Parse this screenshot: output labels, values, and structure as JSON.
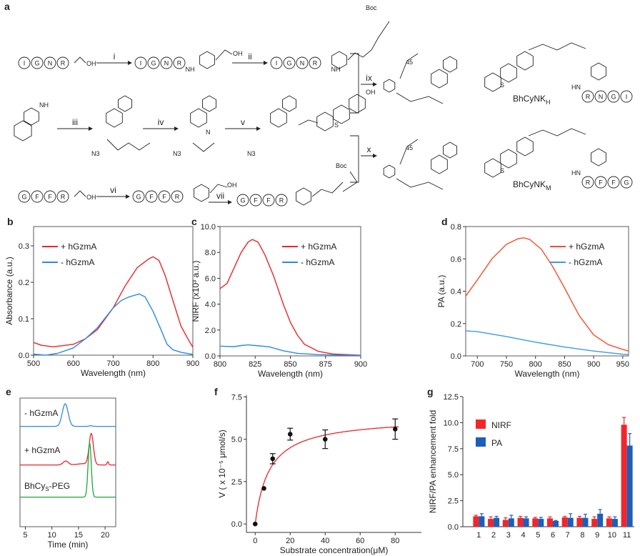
{
  "panel_labels": [
    "a",
    "b",
    "c",
    "d",
    "e",
    "f",
    "g"
  ],
  "scheme": {
    "steps": [
      "i",
      "ii",
      "iii",
      "iv",
      "v",
      "vi",
      "vii",
      "ix",
      "x"
    ],
    "peptide_top": [
      "I",
      "G",
      "N",
      "R"
    ],
    "peptide_bottom": [
      "G",
      "F",
      "F",
      "R"
    ],
    "product_top_peptide": [
      "R",
      "N",
      "G",
      "I"
    ],
    "product_bottom_peptide": [
      "R",
      "F",
      "F",
      "G"
    ],
    "atoms": {
      "oh": "OH",
      "boc": "Boc",
      "n3": "N3",
      "nh": "NH",
      "hn": "HN",
      "s": "S",
      "peg_n": "45",
      "o": "O",
      "n": "N"
    },
    "product_top": {
      "name": "BhCyNK",
      "sub": "H"
    },
    "product_bottom": {
      "name": "BhCyNK",
      "sub": "M"
    }
  },
  "chart_data": [
    {
      "id": "b",
      "type": "line",
      "xlabel": "Wavelength (nm)",
      "ylabel": "Absorbance (a.u.)",
      "xlim": [
        500,
        900
      ],
      "ylim": [
        0,
        0.353
      ],
      "xticks": [
        500,
        600,
        700,
        800,
        900
      ],
      "xticklabels": [
        "500",
        "600",
        "700",
        "800",
        "900"
      ],
      "yticks": [
        0,
        0.1,
        0.2,
        0.3
      ],
      "yticklabels": [
        "0.0",
        "0.1",
        "0.2",
        "0.3"
      ],
      "legend": "top-left",
      "series": [
        {
          "name": "+ hGzmA",
          "color": "#e8262a",
          "x": [
            500,
            520,
            550,
            600,
            630,
            660,
            700,
            730,
            760,
            790,
            800,
            815,
            830,
            850,
            870,
            890,
            900
          ],
          "y": [
            0.035,
            0.027,
            0.023,
            0.03,
            0.045,
            0.07,
            0.13,
            0.19,
            0.24,
            0.265,
            0.27,
            0.26,
            0.22,
            0.15,
            0.08,
            0.04,
            0.022
          ]
        },
        {
          "name": "- hGzmA",
          "color": "#2b8ae8",
          "x": [
            500,
            530,
            560,
            600,
            630,
            660,
            700,
            720,
            740,
            765,
            780,
            800,
            820,
            835,
            850,
            870,
            900
          ],
          "y": [
            0.003,
            0,
            0.005,
            0.02,
            0.045,
            0.075,
            0.13,
            0.15,
            0.16,
            0.168,
            0.16,
            0.12,
            0.07,
            0.03,
            0.015,
            0.008,
            0.002
          ]
        }
      ]
    },
    {
      "id": "c",
      "type": "line",
      "xlabel": "Wavelength (nm)",
      "ylabel": "NIRF (x10³ a.u.)",
      "xlim": [
        800,
        900
      ],
      "ylim": [
        0,
        10
      ],
      "xticks": [
        800,
        825,
        850,
        875,
        900
      ],
      "xticklabels": [
        "800",
        "825",
        "850",
        "875",
        "900"
      ],
      "yticks": [
        0,
        2,
        4,
        6,
        8,
        10
      ],
      "yticklabels": [
        "0.0",
        "2.0",
        "4.0",
        "6.0",
        "8.0",
        "10.0"
      ],
      "legend": "top-right",
      "series": [
        {
          "name": "+ hGzmA",
          "color": "#e8262a",
          "x": [
            800,
            805,
            810,
            815,
            820,
            823,
            827,
            832,
            838,
            845,
            850,
            855,
            860,
            870,
            880,
            890,
            900
          ],
          "y": [
            5.2,
            5.6,
            6.8,
            8.0,
            8.8,
            9.0,
            8.8,
            7.8,
            6.2,
            4.0,
            2.6,
            1.6,
            0.9,
            0.35,
            0.15,
            0.1,
            0.05
          ]
        },
        {
          "name": "- hGzmA",
          "color": "#2b8ae8",
          "x": [
            800,
            810,
            815,
            820,
            825,
            835,
            845,
            855,
            870,
            900
          ],
          "y": [
            0.75,
            0.72,
            0.8,
            0.85,
            0.8,
            0.7,
            0.4,
            0.2,
            0.1,
            0.03
          ]
        }
      ]
    },
    {
      "id": "d",
      "type": "line",
      "xlabel": "Wavelength (nm)",
      "ylabel": "PA (a.u.)",
      "xlim": [
        680,
        960
      ],
      "ylim": [
        0,
        0.8
      ],
      "xticks": [
        700,
        750,
        800,
        850,
        900,
        950
      ],
      "xticklabels": [
        "700",
        "750",
        "800",
        "850",
        "900",
        "950"
      ],
      "yticks": [
        0,
        0.2,
        0.4,
        0.6,
        0.8
      ],
      "yticklabels": [
        "0.0",
        "0.2",
        "0.4",
        "0.6",
        "0.8"
      ],
      "legend": "top-right",
      "series": [
        {
          "name": "+ hGzmA",
          "color": "#f2502c",
          "x": [
            680,
            700,
            725,
            750,
            770,
            780,
            790,
            810,
            830,
            850,
            875,
            900,
            925,
            950,
            960
          ],
          "y": [
            0.37,
            0.47,
            0.6,
            0.69,
            0.725,
            0.73,
            0.72,
            0.66,
            0.55,
            0.42,
            0.25,
            0.13,
            0.07,
            0.04,
            0.03
          ]
        },
        {
          "name": "- hGzmA",
          "color": "#3a9be8",
          "x": [
            680,
            700,
            750,
            800,
            850,
            900,
            950,
            960
          ],
          "y": [
            0.155,
            0.15,
            0.12,
            0.085,
            0.055,
            0.03,
            0.01,
            0.008
          ]
        }
      ]
    },
    {
      "id": "e",
      "type": "line",
      "xlabel": "Time (min)",
      "ylabel": "",
      "xlim": [
        4,
        22
      ],
      "ylim": [
        0,
        10
      ],
      "xticks": [
        5,
        10,
        15,
        20
      ],
      "xticklabels": [
        "5",
        "10",
        "15",
        "20"
      ],
      "yticks": [],
      "yticklabels": [],
      "legend": "inline",
      "series": [
        {
          "name": "- hGzmA",
          "color": "#2b8ae8",
          "baseline": 7.8,
          "peaks": [
            {
              "t": 12.5,
              "h": 1.75,
              "w": 0.55
            },
            {
              "t": 17.3,
              "h": 0.05,
              "w": 0.3
            }
          ]
        },
        {
          "name": "+ hGzmA",
          "color": "#e8262a",
          "baseline": 4.8,
          "peaks": [
            {
              "t": 12.6,
              "h": 0.3,
              "w": 0.5
            },
            {
              "t": 16,
              "h": 0.1,
              "w": 1.2
            },
            {
              "t": 17.4,
              "h": 2.4,
              "w": 0.4
            },
            {
              "t": 20.5,
              "h": 0.25,
              "w": 0.15
            }
          ]
        },
        {
          "name": "BhCyS-PEG",
          "name_main": "BhCy",
          "name_sub": "S",
          "name_tail": "-PEG",
          "color": "#1fa83a",
          "baseline": 2.3,
          "peaks": [
            {
              "t": 17.1,
              "h": 4.2,
              "w": 0.3
            }
          ]
        }
      ]
    },
    {
      "id": "f",
      "type": "scatter",
      "xlabel": "Substrate concentration(μM)",
      "ylabel": "V ( x 10⁻⁵ μmol/s)",
      "xlim": [
        -5,
        95
      ],
      "ylim": [
        -0.5,
        7.6
      ],
      "xticks": [
        0,
        20,
        40,
        60,
        80
      ],
      "xticklabels": [
        "0",
        "20",
        "40",
        "60",
        "80"
      ],
      "yticks": [
        0,
        2.5,
        5,
        7.5
      ],
      "yticklabels": [
        "0.0",
        "2.5",
        "5.0",
        "7.5"
      ],
      "points": {
        "x": [
          0,
          5,
          10,
          20,
          40,
          80
        ],
        "y": [
          0,
          2.1,
          3.85,
          5.3,
          5.0,
          5.6
        ],
        "err": [
          0,
          0,
          0.3,
          0.35,
          0.55,
          0.6
        ]
      },
      "fit": {
        "model": "Michaelis-Menten",
        "vmax": 6.3,
        "km": 8,
        "color": "#e8262a"
      }
    },
    {
      "id": "g",
      "type": "bar",
      "xlabel": "",
      "ylabel": "NIRF/PA enhancement fold",
      "ylim": [
        0,
        12.5
      ],
      "categories": [
        "1",
        "2",
        "3",
        "4",
        "5",
        "6",
        "7",
        "8",
        "9",
        "10",
        "11"
      ],
      "yticks": [
        0,
        2.5,
        5,
        7.5,
        10,
        12.5
      ],
      "yticklabels": [
        "0.0",
        "2.5",
        "5.0",
        "7.5",
        "10.0",
        "12.5"
      ],
      "legend": "upper-left",
      "series": [
        {
          "name": "NIRF",
          "color": "#f2262a",
          "values": [
            1.0,
            0.75,
            0.65,
            0.85,
            0.8,
            0.8,
            0.9,
            0.85,
            0.75,
            0.8,
            9.8
          ],
          "err": [
            0.1,
            0.2,
            0.2,
            0.15,
            0.1,
            0.15,
            0.1,
            0.15,
            0.2,
            0.15,
            0.7
          ]
        },
        {
          "name": "PA",
          "color": "#1c5fb8",
          "values": [
            1.0,
            0.85,
            0.8,
            0.8,
            0.75,
            0.55,
            0.85,
            0.85,
            1.25,
            0.75,
            7.8
          ],
          "err": [
            0.25,
            0.15,
            0.3,
            0.15,
            0.15,
            0.05,
            0.4,
            0.35,
            0.4,
            0.2,
            1.15
          ]
        }
      ]
    }
  ]
}
